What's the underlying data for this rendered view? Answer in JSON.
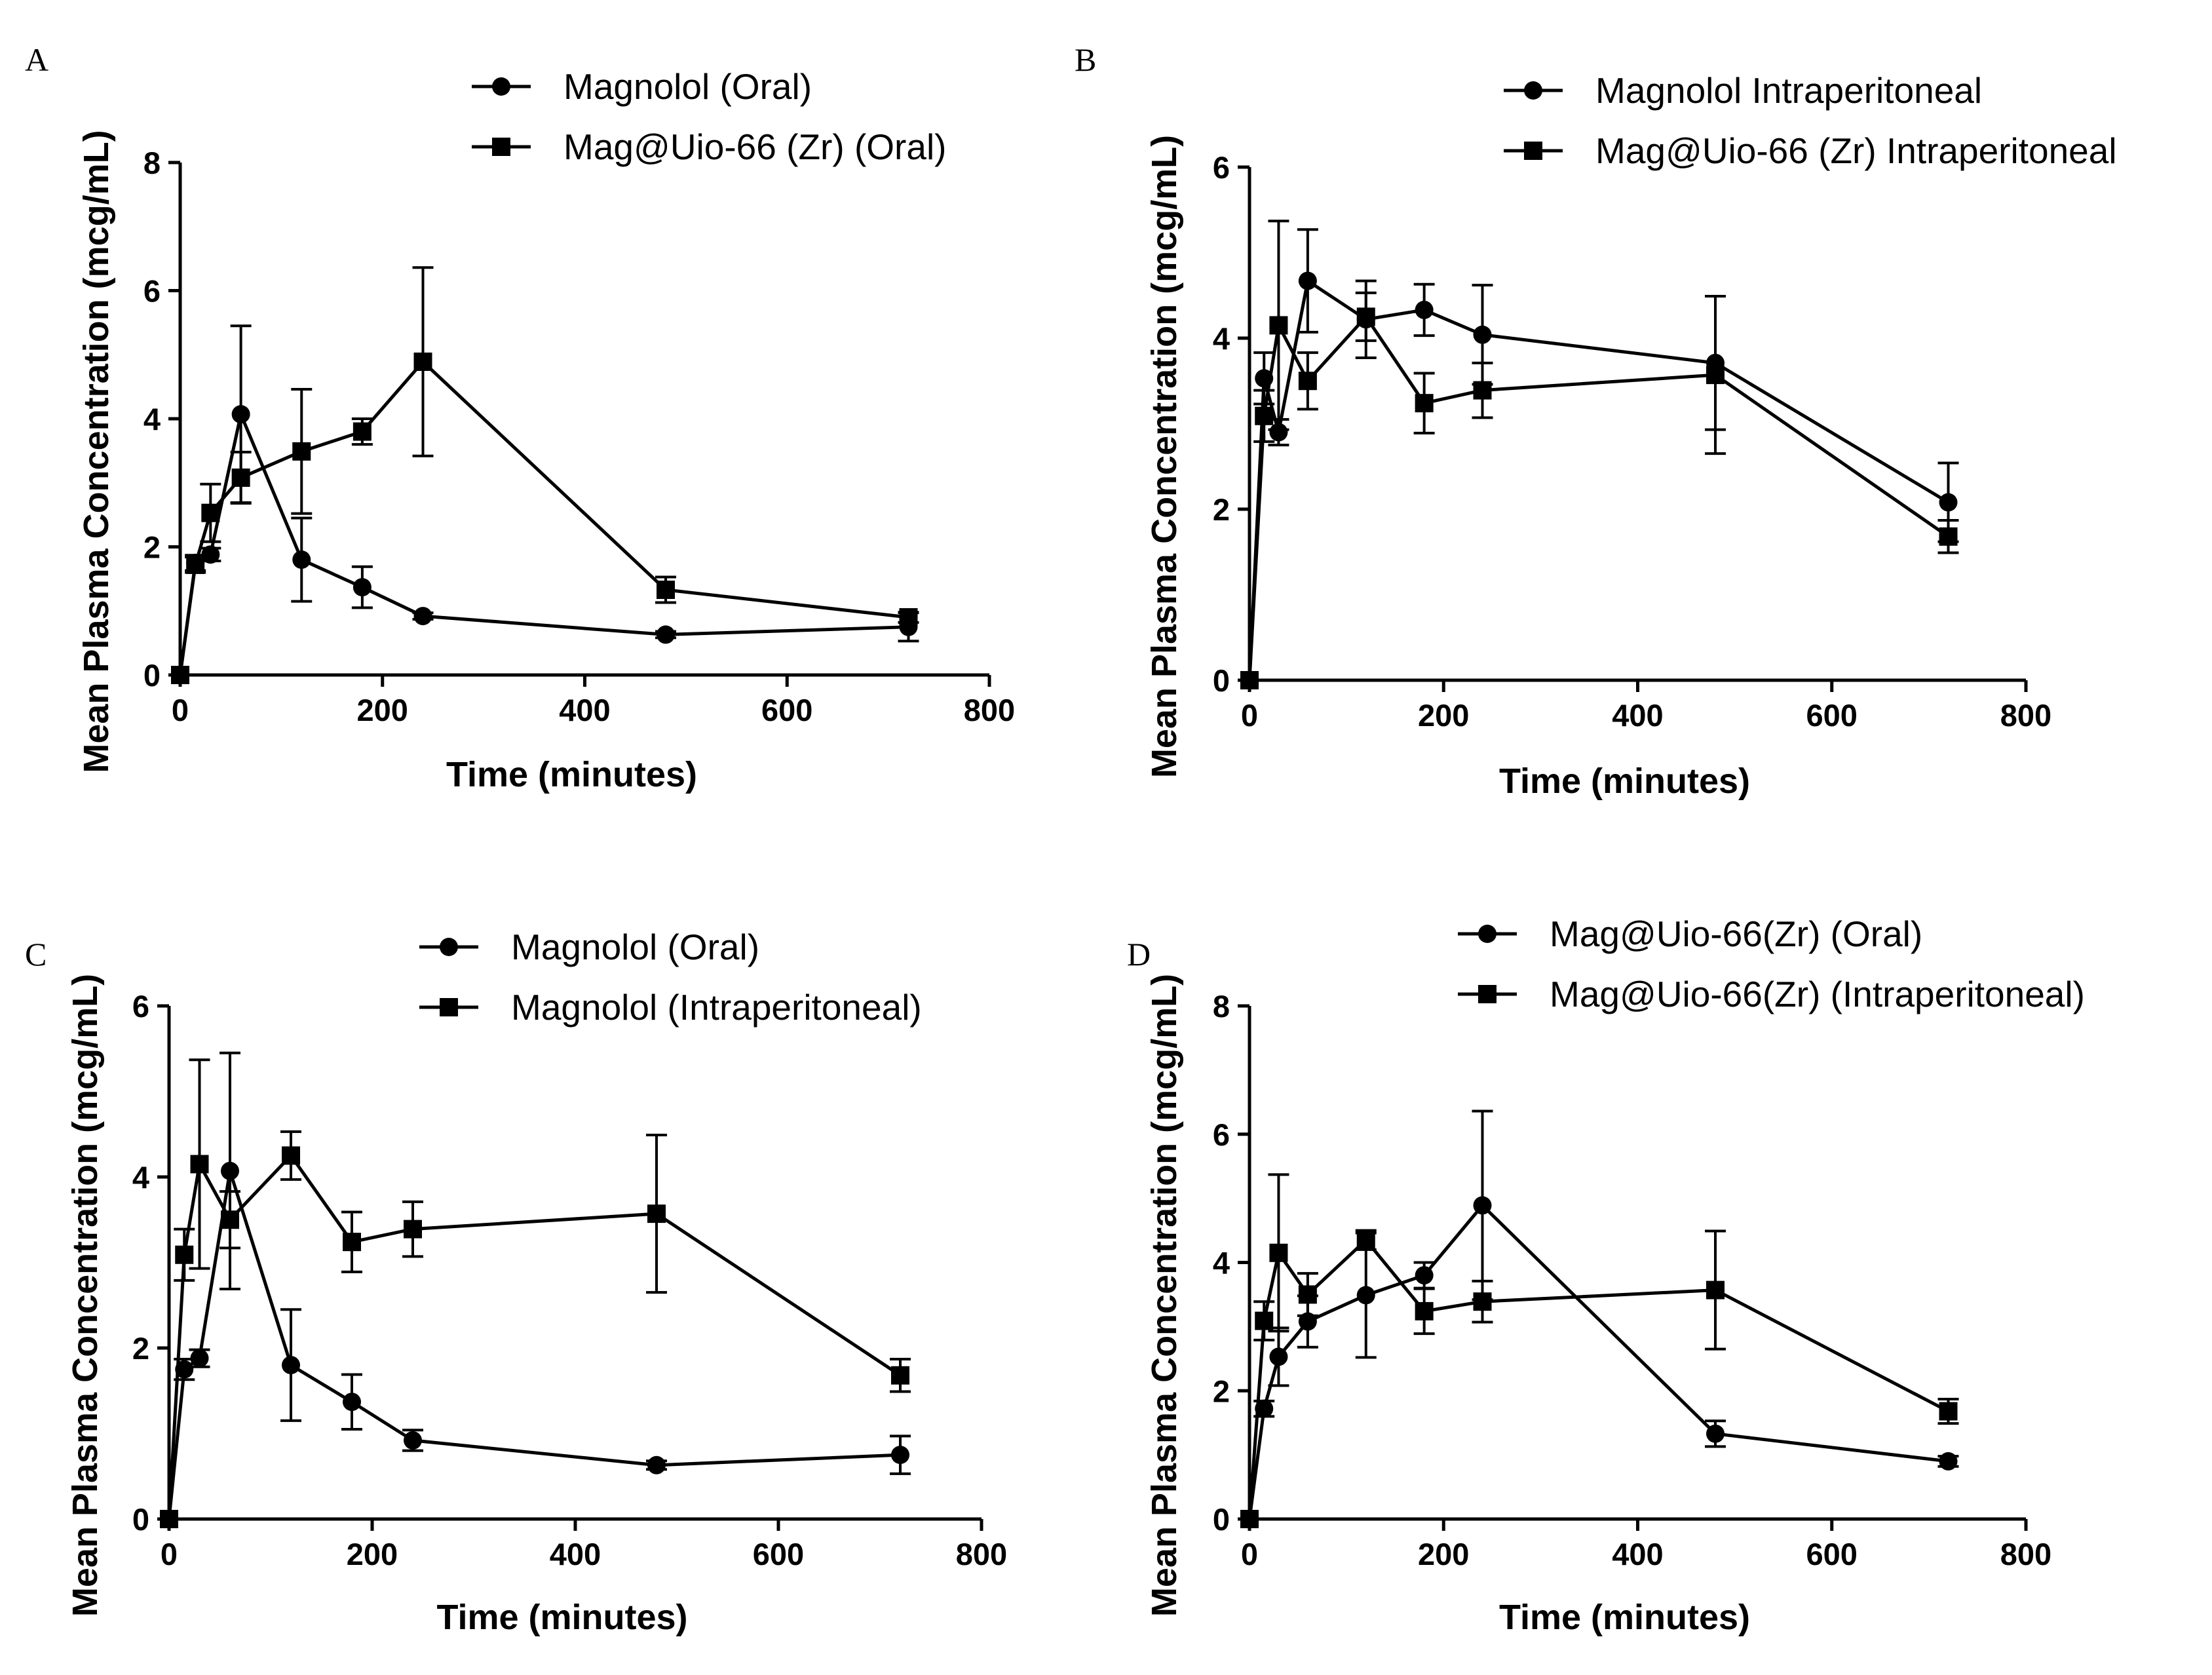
{
  "colors": {
    "ink": "#000000",
    "background": "#ffffff"
  },
  "chart_data": [
    {
      "panel": "A",
      "type": "line",
      "title": "",
      "xlabel": "Time (minutes)",
      "ylabel": "Mean Plasma  Concentration (mcg/mL)",
      "xlim": [
        0,
        800
      ],
      "ylim": [
        0,
        8
      ],
      "xticks": [
        0,
        200,
        400,
        600,
        800
      ],
      "yticks": [
        0,
        2,
        4,
        6,
        8
      ],
      "grid": false,
      "legend_position": "top-right",
      "series": [
        {
          "name": "Magnolol (Oral)",
          "marker": "circle",
          "x": [
            0,
            15,
            30,
            60,
            120,
            180,
            240,
            480,
            720
          ],
          "y": [
            0,
            1.75,
            1.88,
            4.07,
            1.8,
            1.37,
            0.92,
            0.63,
            0.75
          ],
          "err": [
            0,
            0.12,
            0.1,
            1.38,
            0.65,
            0.32,
            0.05,
            0.05,
            0.22
          ]
        },
        {
          "name": "Mag@Uio-66 (Zr) (Oral)",
          "marker": "square",
          "x": [
            0,
            15,
            30,
            60,
            120,
            180,
            240,
            480,
            720
          ],
          "y": [
            0,
            1.72,
            2.53,
            3.08,
            3.49,
            3.8,
            4.89,
            1.33,
            0.9
          ],
          "err": [
            0,
            0.12,
            0.45,
            0.4,
            0.97,
            0.2,
            1.47,
            0.2,
            0.08
          ]
        }
      ]
    },
    {
      "panel": "B",
      "type": "line",
      "title": "",
      "xlabel": "Time (minutes)",
      "ylabel": "Mean Plasma  Concentration (mcg/mL)",
      "xlim": [
        0,
        800
      ],
      "ylim": [
        0,
        6
      ],
      "xticks": [
        0,
        200,
        400,
        600,
        800
      ],
      "yticks": [
        0,
        2,
        4,
        6
      ],
      "grid": false,
      "legend_position": "top-right",
      "series": [
        {
          "name": "Magnolol Intraperitoneal",
          "marker": "circle",
          "x": [
            0,
            15,
            30,
            60,
            120,
            180,
            240,
            480,
            720
          ],
          "y": [
            0,
            3.53,
            2.9,
            4.67,
            4.22,
            4.33,
            4.04,
            3.71,
            2.08
          ],
          "err": [
            0,
            0.3,
            0.15,
            0.6,
            0.45,
            0.3,
            0.58,
            0.78,
            0.46
          ]
        },
        {
          "name": "Mag@Uio-66 (Zr) Intraperitoneal",
          "marker": "square",
          "x": [
            0,
            15,
            30,
            60,
            120,
            180,
            240,
            480,
            720
          ],
          "y": [
            0,
            3.09,
            4.15,
            3.5,
            4.25,
            3.24,
            3.39,
            3.57,
            1.68
          ],
          "err": [
            0,
            0.3,
            1.22,
            0.33,
            0.28,
            0.35,
            0.32,
            0.92,
            0.19
          ]
        }
      ]
    },
    {
      "panel": "C",
      "type": "line",
      "title": "",
      "xlabel": "Time (minutes)",
      "ylabel": "Mean Plasma  Concentration (mcg/mL)",
      "xlim": [
        0,
        800
      ],
      "ylim": [
        0,
        6
      ],
      "xticks": [
        0,
        200,
        400,
        600,
        800
      ],
      "yticks": [
        0,
        2,
        4,
        6
      ],
      "grid": false,
      "legend_position": "top-right",
      "series": [
        {
          "name": "Magnolol (Oral)",
          "marker": "circle",
          "x": [
            0,
            15,
            30,
            60,
            120,
            180,
            240,
            480,
            720
          ],
          "y": [
            0,
            1.75,
            1.88,
            4.07,
            1.8,
            1.37,
            0.92,
            0.63,
            0.75
          ],
          "err": [
            0,
            0.12,
            0.1,
            1.38,
            0.65,
            0.32,
            0.12,
            0.05,
            0.22
          ]
        },
        {
          "name": "Magnolol (Intraperitoneal)",
          "marker": "square",
          "x": [
            0,
            15,
            30,
            60,
            120,
            180,
            240,
            480,
            720
          ],
          "y": [
            0,
            3.09,
            4.15,
            3.5,
            4.25,
            3.24,
            3.39,
            3.57,
            1.68
          ],
          "err": [
            0,
            0.3,
            1.22,
            0.33,
            0.28,
            0.35,
            0.32,
            0.92,
            0.19
          ]
        }
      ]
    },
    {
      "panel": "D",
      "type": "line",
      "title": "",
      "xlabel": "Time (minutes)",
      "ylabel": "Mean Plasma  Concentration (mcg/mL)",
      "xlim": [
        0,
        800
      ],
      "ylim": [
        0,
        8
      ],
      "xticks": [
        0,
        200,
        400,
        600,
        800
      ],
      "yticks": [
        0,
        2,
        4,
        6,
        8
      ],
      "grid": false,
      "legend_position": "top-right",
      "series": [
        {
          "name": "Mag@Uio-66(Zr) (Oral)",
          "marker": "circle",
          "x": [
            0,
            15,
            30,
            60,
            120,
            180,
            240,
            480,
            720
          ],
          "y": [
            0,
            1.72,
            2.53,
            3.08,
            3.49,
            3.8,
            4.89,
            1.33,
            0.9
          ],
          "err": [
            0,
            0.12,
            0.45,
            0.4,
            0.97,
            0.2,
            1.47,
            0.2,
            0.08
          ]
        },
        {
          "name": "Mag@Uio-66(Zr) (Intraperitoneal)",
          "marker": "square",
          "x": [
            0,
            15,
            30,
            60,
            120,
            180,
            240,
            480,
            720
          ],
          "y": [
            0,
            3.09,
            4.15,
            3.5,
            4.35,
            3.24,
            3.39,
            3.57,
            1.68
          ],
          "err": [
            0,
            0.3,
            1.22,
            0.33,
            0.15,
            0.35,
            0.32,
            0.92,
            0.19
          ]
        }
      ]
    }
  ]
}
